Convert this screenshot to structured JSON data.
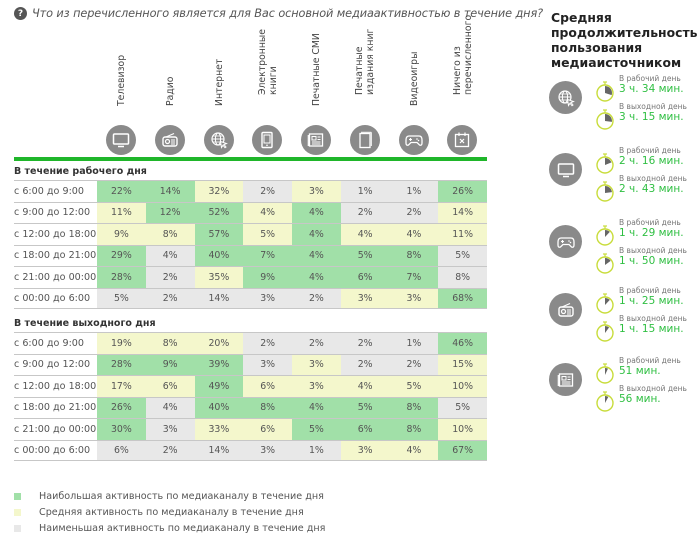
{
  "question": {
    "icon": "question-circle-icon",
    "text": "Что из перечисленного является для Вас основной медиаактивностью в течение дня?"
  },
  "columns": [
    {
      "label": "Телевизор",
      "icon": "tv-icon"
    },
    {
      "label": "Радио",
      "icon": "radio-icon"
    },
    {
      "label": "Интернет",
      "icon": "globe-cursor-icon"
    },
    {
      "label": "Электронные книги",
      "icon": "ebook-icon"
    },
    {
      "label": "Печатные СМИ",
      "icon": "newspaper-icon"
    },
    {
      "label": "Печатные издания книг",
      "icon": "book-icon"
    },
    {
      "label": "Видеоигры",
      "icon": "gamepad-icon"
    },
    {
      "label": "Ничего из перечисленного",
      "icon": "calendar-x-icon"
    }
  ],
  "colors": {
    "accent_bar": "#1fb62a",
    "high": "#a1e0a8",
    "mid": "#f4f7cc",
    "low": "#e8e8e8",
    "time_value": "#2fbf42"
  },
  "workday": {
    "title": "В течение рабочего дня",
    "rows": [
      {
        "label": "с 6:00 до 9:00",
        "values": [
          "22%",
          "14%",
          "32%",
          "2%",
          "3%",
          "1%",
          "1%",
          "26%"
        ],
        "levels": [
          "high",
          "high",
          "mid",
          "low",
          "mid",
          "low",
          "low",
          "high"
        ]
      },
      {
        "label": "с 9:00 до 12:00",
        "values": [
          "11%",
          "12%",
          "52%",
          "4%",
          "4%",
          "2%",
          "2%",
          "14%"
        ],
        "levels": [
          "mid",
          "high",
          "high",
          "mid",
          "high",
          "low",
          "low",
          "mid"
        ]
      },
      {
        "label": "с 12:00 до 18:00",
        "values": [
          "9%",
          "8%",
          "57%",
          "5%",
          "4%",
          "4%",
          "4%",
          "11%"
        ],
        "levels": [
          "mid",
          "mid",
          "high",
          "mid",
          "high",
          "mid",
          "mid",
          "mid"
        ]
      },
      {
        "label": "с 18:00 до 21:00",
        "values": [
          "29%",
          "4%",
          "40%",
          "7%",
          "4%",
          "5%",
          "8%",
          "5%"
        ],
        "levels": [
          "high",
          "low",
          "high",
          "high",
          "high",
          "high",
          "high",
          "low"
        ]
      },
      {
        "label": "с 21:00 до 00:00",
        "values": [
          "28%",
          "2%",
          "35%",
          "9%",
          "4%",
          "6%",
          "7%",
          "8%"
        ],
        "levels": [
          "high",
          "low",
          "mid",
          "high",
          "high",
          "high",
          "high",
          "low"
        ]
      },
      {
        "label": "с 00:00 до 6:00",
        "values": [
          "5%",
          "2%",
          "14%",
          "3%",
          "2%",
          "3%",
          "3%",
          "68%"
        ],
        "levels": [
          "low",
          "low",
          "low",
          "low",
          "low",
          "mid",
          "mid",
          "high"
        ]
      }
    ]
  },
  "weekend": {
    "title": "В течение выходного дня",
    "rows": [
      {
        "label": "с 6:00 до 9:00",
        "values": [
          "19%",
          "8%",
          "20%",
          "2%",
          "2%",
          "2%",
          "1%",
          "46%"
        ],
        "levels": [
          "mid",
          "mid",
          "mid",
          "low",
          "low",
          "low",
          "low",
          "high"
        ]
      },
      {
        "label": "с 9:00 до 12:00",
        "values": [
          "28%",
          "9%",
          "39%",
          "3%",
          "3%",
          "2%",
          "2%",
          "15%"
        ],
        "levels": [
          "high",
          "high",
          "high",
          "low",
          "mid",
          "low",
          "low",
          "mid"
        ]
      },
      {
        "label": "с 12:00 до 18:00",
        "values": [
          "17%",
          "6%",
          "49%",
          "6%",
          "3%",
          "4%",
          "5%",
          "10%"
        ],
        "levels": [
          "mid",
          "mid",
          "high",
          "mid",
          "mid",
          "mid",
          "mid",
          "mid"
        ]
      },
      {
        "label": "с 18:00 до 21:00",
        "values": [
          "26%",
          "4%",
          "40%",
          "8%",
          "4%",
          "5%",
          "8%",
          "5%"
        ],
        "levels": [
          "high",
          "low",
          "high",
          "high",
          "high",
          "high",
          "high",
          "low"
        ]
      },
      {
        "label": "с 21:00 до 00:00",
        "values": [
          "30%",
          "3%",
          "33%",
          "6%",
          "5%",
          "6%",
          "8%",
          "10%"
        ],
        "levels": [
          "high",
          "low",
          "mid",
          "mid",
          "high",
          "high",
          "high",
          "mid"
        ]
      },
      {
        "label": "с 00:00 до 6:00",
        "values": [
          "6%",
          "2%",
          "14%",
          "3%",
          "1%",
          "3%",
          "4%",
          "67%"
        ],
        "levels": [
          "low",
          "low",
          "low",
          "low",
          "low",
          "mid",
          "mid",
          "high"
        ]
      }
    ]
  },
  "legend": [
    {
      "level": "high",
      "text": "Наибольшая активность по медиаканалу в течение дня"
    },
    {
      "level": "mid",
      "text": "Средняя активность по медиаканалу в течение дня"
    },
    {
      "level": "low",
      "text": "Наименьшая активность по медиаканалу в течение дня"
    }
  ],
  "sidebar": {
    "title": "Средняя продолжительность пользования медиаисточником",
    "items": [
      {
        "icon": "globe-cursor-icon",
        "media": "Интернет",
        "workday": {
          "label": "В рабочий день",
          "value": "3 ч. 34 мин.",
          "fraction_of_hour_clock": 0.3
        },
        "weekend": {
          "label": "В выходной день",
          "value": "3 ч. 15 мин.",
          "fraction_of_hour_clock": 0.27
        }
      },
      {
        "icon": "tv-icon",
        "media": "Телевизор",
        "workday": {
          "label": "В рабочий день",
          "value": "2 ч. 16 мин.",
          "fraction_of_hour_clock": 0.19
        },
        "weekend": {
          "label": "В выходной день",
          "value": "2 ч. 43 мин.",
          "fraction_of_hour_clock": 0.23
        }
      },
      {
        "icon": "gamepad-icon",
        "media": "Видеоигры",
        "workday": {
          "label": "В рабочий день",
          "value": "1 ч. 29 мин.",
          "fraction_of_hour_clock": 0.12
        },
        "weekend": {
          "label": "В выходной день",
          "value": "1 ч. 50 мин.",
          "fraction_of_hour_clock": 0.15
        }
      },
      {
        "icon": "radio-icon",
        "media": "Радио",
        "workday": {
          "label": "В рабочий день",
          "value": "1 ч. 25 мин.",
          "fraction_of_hour_clock": 0.12
        },
        "weekend": {
          "label": "В выходной день",
          "value": "1 ч. 15 мин.",
          "fraction_of_hour_clock": 0.1
        }
      },
      {
        "icon": "newspaper-icon",
        "media": "Печатные СМИ",
        "workday": {
          "label": "В рабочий день",
          "value": "51 мин.",
          "fraction_of_hour_clock": 0.07
        },
        "weekend": {
          "label": "В выходной день",
          "value": "56 мин.",
          "fraction_of_hour_clock": 0.08
        }
      }
    ]
  }
}
